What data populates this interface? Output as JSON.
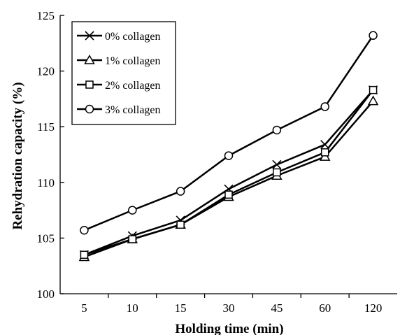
{
  "chart_data": {
    "type": "line",
    "categories": [
      "5",
      "10",
      "15",
      "30",
      "45",
      "60",
      "120"
    ],
    "series": [
      {
        "name": "0% collagen",
        "marker": "x",
        "values": [
          103.5,
          105.2,
          106.6,
          109.4,
          111.6,
          113.4,
          118.3
        ]
      },
      {
        "name": "1% collagen",
        "marker": "triangle",
        "values": [
          103.3,
          104.9,
          106.2,
          108.7,
          110.6,
          112.3,
          117.3
        ]
      },
      {
        "name": "2% collagen",
        "marker": "square",
        "values": [
          103.5,
          104.9,
          106.2,
          108.9,
          110.9,
          112.7,
          118.3
        ]
      },
      {
        "name": "3% collagen",
        "marker": "circle",
        "values": [
          105.7,
          107.5,
          109.2,
          112.4,
          114.7,
          116.8,
          123.2
        ]
      }
    ],
    "xlabel": "Holding time (min)",
    "ylabel": "Rehydration capacity (%)",
    "ylim": [
      100,
      125
    ],
    "yticks": [
      100,
      105,
      110,
      115,
      120,
      125
    ],
    "grid": false,
    "legend_position": "top-left"
  }
}
